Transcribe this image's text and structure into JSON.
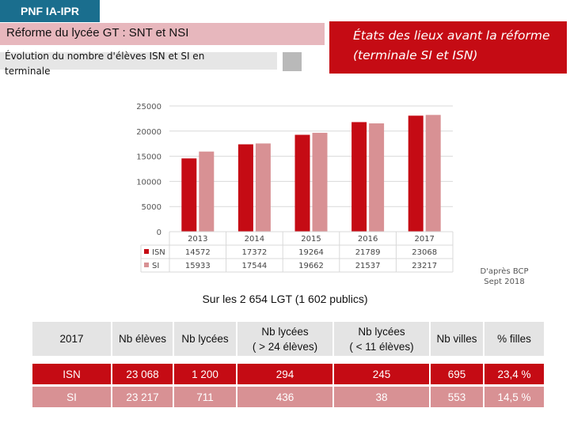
{
  "header": {
    "tag": "PNF IA-IPR",
    "title": "Réforme du lycée GT : SNT et NSI",
    "subtitle": "Évolution du nombre d'élèves ISN et SI en terminale",
    "callout": "États des lieux avant la réforme (terminale SI et ISN)"
  },
  "colors": {
    "isn": "#c50b14",
    "si": "#d89194",
    "tag": "#1a6e8e",
    "title_band": "#e7b7bd"
  },
  "chart_data": {
    "type": "bar",
    "categories": [
      "2013",
      "2014",
      "2015",
      "2016",
      "2017"
    ],
    "series": [
      {
        "name": "ISN",
        "values": [
          14572,
          17372,
          19264,
          21789,
          23068
        ],
        "color": "#c50b14"
      },
      {
        "name": "SI",
        "values": [
          15933,
          17544,
          19662,
          21537,
          23217
        ],
        "color": "#d89194"
      }
    ],
    "y_ticks": [
      "25000",
      "20000",
      "15000",
      "10000",
      "5000",
      "0"
    ],
    "ylim": [
      0,
      25000
    ],
    "grid": true,
    "legend": "data-table below x-axis",
    "data_table": true
  },
  "note": {
    "line1": "D'après BCP",
    "line2": "Sept 2018"
  },
  "summary": "Sur les 2 654 LGT (1 602 publics)",
  "table": {
    "headers": [
      "2017",
      "Nb élèves",
      "Nb lycées",
      "Nb lycées\n( > 24 élèves)",
      "Nb lycées\n( < 11 élèves)",
      "Nb villes",
      "% filles"
    ],
    "rows": [
      {
        "cells": [
          "ISN",
          "23 068",
          "1 200",
          "294",
          "245",
          "695",
          "23,4 %"
        ]
      },
      {
        "cells": [
          "SI",
          "23 217",
          "711",
          "436",
          "38",
          "553",
          "14,5 %"
        ]
      }
    ]
  }
}
